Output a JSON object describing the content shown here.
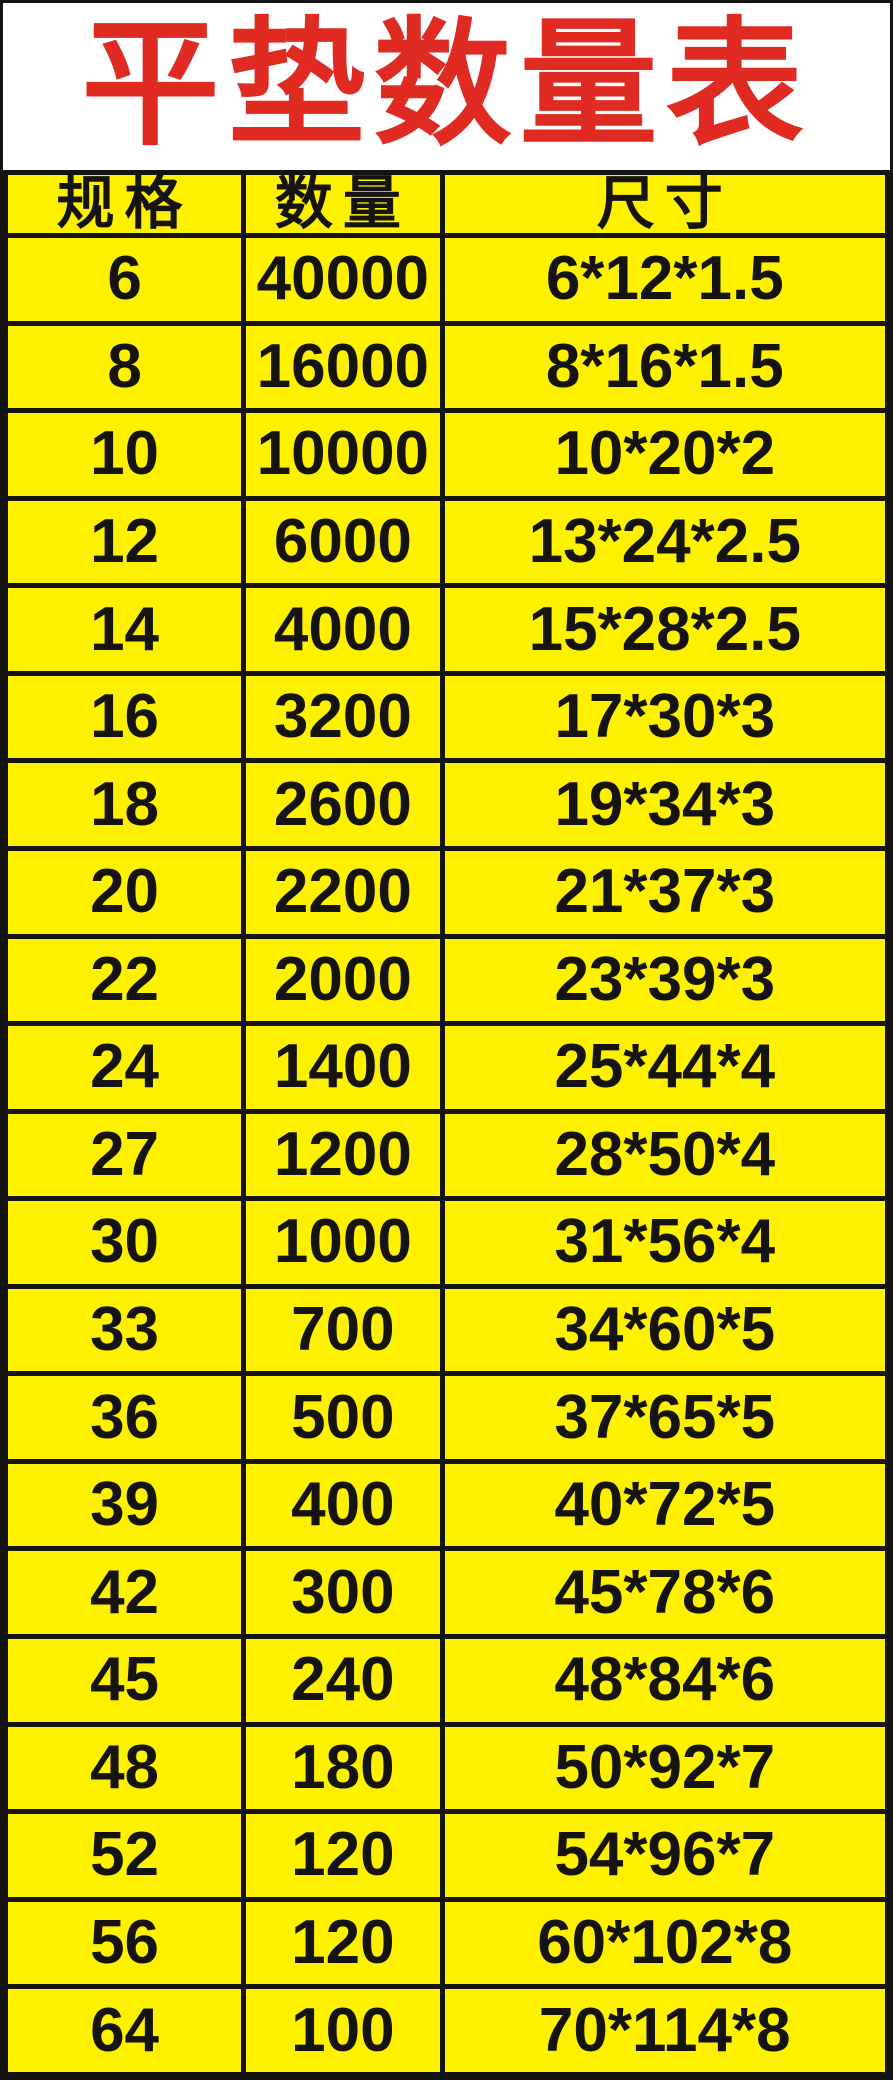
{
  "title": "平垫数量表",
  "colors": {
    "table_background": "#FEF100",
    "title_red": "#E02B22",
    "grid_black": "#161413",
    "panel_white": "#FFFFFF"
  },
  "chart_data": {
    "type": "table",
    "title": "平垫数量表",
    "columns": [
      "规格",
      "数量",
      "尺寸"
    ],
    "rows": [
      [
        "6",
        "40000",
        "6*12*1.5"
      ],
      [
        "8",
        "16000",
        "8*16*1.5"
      ],
      [
        "10",
        "10000",
        "10*20*2"
      ],
      [
        "12",
        "6000",
        "13*24*2.5"
      ],
      [
        "14",
        "4000",
        "15*28*2.5"
      ],
      [
        "16",
        "3200",
        "17*30*3"
      ],
      [
        "18",
        "2600",
        "19*34*3"
      ],
      [
        "20",
        "2200",
        "21*37*3"
      ],
      [
        "22",
        "2000",
        "23*39*3"
      ],
      [
        "24",
        "1400",
        "25*44*4"
      ],
      [
        "27",
        "1200",
        "28*50*4"
      ],
      [
        "30",
        "1000",
        "31*56*4"
      ],
      [
        "33",
        "700",
        "34*60*5"
      ],
      [
        "36",
        "500",
        "37*65*5"
      ],
      [
        "39",
        "400",
        "40*72*5"
      ],
      [
        "42",
        "300",
        "45*78*6"
      ],
      [
        "45",
        "240",
        "48*84*6"
      ],
      [
        "48",
        "180",
        "50*92*7"
      ],
      [
        "52",
        "120",
        "54*96*7"
      ],
      [
        "56",
        "120",
        "60*102*8"
      ],
      [
        "64",
        "100",
        "70*114*8"
      ]
    ],
    "layout": {
      "grid": true,
      "header_row": true,
      "column_alignment": [
        "center",
        "center",
        "center"
      ]
    }
  }
}
